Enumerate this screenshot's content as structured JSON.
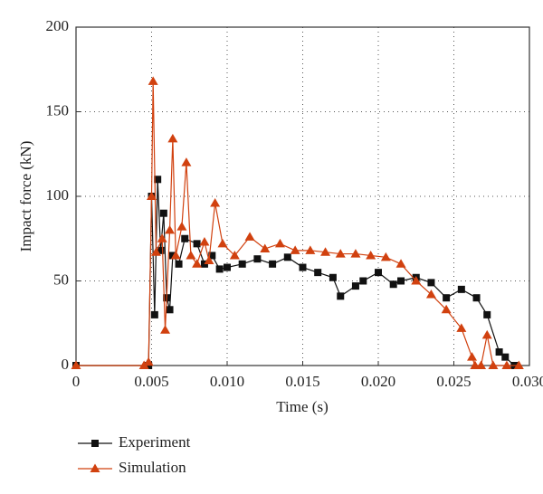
{
  "chart_data": {
    "type": "line",
    "x_label": "Time (s)",
    "y_label": "Impact force (kN)",
    "xlim": [
      0,
      0.03
    ],
    "ylim": [
      0,
      200
    ],
    "xticks": [
      0,
      0.005,
      {
        "value": 0.01,
        "label": "0.010"
      },
      0.015,
      {
        "value": 0.02,
        "label": "0.020"
      },
      0.025,
      {
        "value": 0.03,
        "label": "0.030"
      }
    ],
    "yticks": [
      0,
      50,
      100,
      150,
      200
    ],
    "grid": true,
    "legend": "bottom-left",
    "series": [
      {
        "name": "Experiment",
        "color": "#111111",
        "marker": "square",
        "x": [
          0,
          0.0048,
          0.005,
          0.0052,
          0.0054,
          0.0056,
          0.0058,
          0.006,
          0.0062,
          0.0064,
          0.0068,
          0.0072,
          0.008,
          0.0085,
          0.009,
          0.0095,
          0.01,
          0.011,
          0.012,
          0.013,
          0.014,
          0.015,
          0.016,
          0.017,
          0.0175,
          0.0185,
          0.019,
          0.02,
          0.021,
          0.0215,
          0.0225,
          0.0235,
          0.0245,
          0.0255,
          0.0265,
          0.0272,
          0.028,
          0.0284,
          0.029
        ],
        "values": [
          0,
          0,
          100,
          30,
          110,
          68,
          90,
          40,
          33,
          65,
          60,
          75,
          72,
          60,
          65,
          57,
          58,
          60,
          63,
          60,
          64,
          58,
          55,
          52,
          41,
          47,
          50,
          55,
          48,
          50,
          52,
          49,
          40,
          45,
          40,
          30,
          8,
          5,
          0
        ]
      },
      {
        "name": "Simulation",
        "color": "#d1410f",
        "marker": "triangle",
        "x": [
          0,
          0.0045,
          0.0048,
          0.005,
          0.0051,
          0.0053,
          0.0057,
          0.0059,
          0.0062,
          0.0064,
          0.0066,
          0.007,
          0.0073,
          0.0076,
          0.008,
          0.0085,
          0.0088,
          0.0092,
          0.0097,
          0.0105,
          0.0115,
          0.0125,
          0.0135,
          0.0145,
          0.0155,
          0.0165,
          0.0175,
          0.0185,
          0.0195,
          0.0205,
          0.0215,
          0.0225,
          0.0235,
          0.0245,
          0.0255,
          0.0262,
          0.0264,
          0.0268,
          0.0272,
          0.0276,
          0.0285,
          0.0293
        ],
        "values": [
          0,
          0,
          2,
          100,
          168,
          67,
          75,
          21,
          80,
          134,
          65,
          82,
          120,
          65,
          60,
          73,
          62,
          96,
          72,
          65,
          76,
          69,
          72,
          68,
          68,
          67,
          66,
          66,
          65,
          64,
          60,
          50,
          42,
          33,
          22,
          5,
          0,
          0,
          18,
          0,
          0,
          0
        ]
      }
    ]
  }
}
